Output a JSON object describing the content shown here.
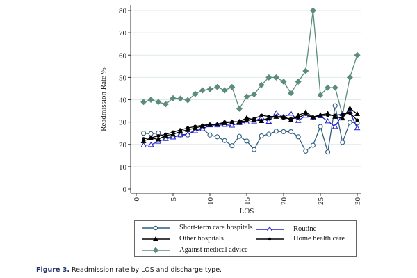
{
  "chart_data": {
    "type": "line",
    "title": "",
    "xlabel": "LOS",
    "ylabel": "Readmission Rate %",
    "xlim": [
      0,
      30
    ],
    "ylim": [
      0,
      80
    ],
    "xticks": [
      0,
      5,
      10,
      15,
      20,
      25,
      30
    ],
    "yticks": [
      0,
      10,
      20,
      30,
      40,
      50,
      60,
      70,
      80
    ],
    "grid": "horizontal",
    "legend_position": "bottom",
    "x": [
      1,
      2,
      3,
      4,
      5,
      6,
      7,
      8,
      9,
      10,
      11,
      12,
      13,
      14,
      15,
      16,
      17,
      18,
      19,
      20,
      21,
      22,
      23,
      24,
      25,
      26,
      27,
      28,
      29,
      30
    ],
    "series": [
      {
        "name": "Short-term care hospitals",
        "color": "#2e5f7f",
        "marker": "circle-open",
        "values": [
          25,
          24.8,
          25.1,
          23,
          23.4,
          24.2,
          24.2,
          26.8,
          27,
          24.2,
          23.4,
          21.7,
          19.4,
          23.6,
          21.5,
          17.7,
          23.8,
          24.6,
          25.9,
          25.7,
          25.7,
          23.4,
          17,
          19.6,
          28,
          16.6,
          37.3,
          20.9,
          29.9,
          29.6
        ]
      },
      {
        "name": "Routine",
        "color": "#2222cc",
        "marker": "triangle-open",
        "values": [
          19.6,
          19.8,
          21.3,
          22.5,
          23.2,
          24.2,
          24.6,
          26,
          26.9,
          28.6,
          28.6,
          28.8,
          28.5,
          29.6,
          29.9,
          30.3,
          32,
          30.2,
          34,
          32.2,
          33.8,
          30.6,
          32.9,
          31.9,
          32.7,
          30.4,
          27.9,
          33.6,
          34.5,
          27.3
        ]
      },
      {
        "name": "Other hospitals",
        "color": "#000000",
        "marker": "triangle-filled",
        "values": [
          21.5,
          22.8,
          22.3,
          24,
          24.5,
          25.8,
          26.5,
          27.3,
          28.2,
          28.8,
          29,
          29.6,
          30,
          30.2,
          31.9,
          31,
          30.5,
          31.9,
          32.4,
          32.5,
          30.9,
          33,
          34.4,
          32.3,
          33.2,
          33.8,
          32.4,
          31.7,
          36.2,
          33.6
        ]
      },
      {
        "name": "Home health care",
        "color": "#000000",
        "marker": "dot",
        "values": [
          22.5,
          23,
          23.8,
          24.5,
          25.5,
          26.5,
          27.3,
          28,
          28.5,
          29,
          29,
          30,
          30.1,
          30.2,
          30.5,
          31.5,
          33,
          32.5,
          32.5,
          31.8,
          31.5,
          32,
          33.5,
          32,
          33,
          33,
          33,
          33.5,
          34,
          30.8
        ]
      },
      {
        "name": "Against medical advice",
        "color": "#5b8c7e",
        "marker": "diamond-filled",
        "values": [
          39,
          40,
          39,
          38,
          40.7,
          40.5,
          39.8,
          42.6,
          44.2,
          44.7,
          45.7,
          44.2,
          45.7,
          36,
          41.4,
          42.4,
          46.6,
          50,
          50,
          48.1,
          42.9,
          48.1,
          52.9,
          80,
          42.1,
          45.4,
          45.4,
          33.2,
          50,
          60
        ]
      }
    ]
  },
  "caption": {
    "label": "Figure 3.",
    "text": " Readmission rate by LOS and discharge type."
  }
}
